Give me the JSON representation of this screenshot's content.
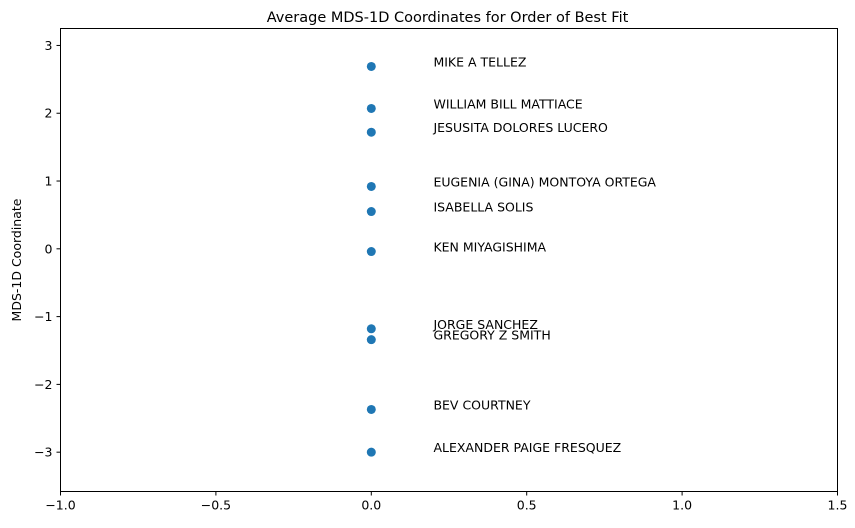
{
  "chart_data": {
    "type": "scatter",
    "title": "Average MDS-1D Coordinates for Order of Best Fit",
    "xlabel": "",
    "ylabel": "MDS-1D Coordinate",
    "xlim": [
      -1.0,
      1.5
    ],
    "ylim": [
      -3.58,
      3.25
    ],
    "xticks": [
      {
        "value": -1.0,
        "label": "−1.0"
      },
      {
        "value": -0.5,
        "label": "−0.5"
      },
      {
        "value": 0.0,
        "label": "0.0"
      },
      {
        "value": 0.5,
        "label": "0.5"
      },
      {
        "value": 1.0,
        "label": "1.0"
      },
      {
        "value": 1.5,
        "label": "1.5"
      }
    ],
    "yticks": [
      {
        "value": 3,
        "label": "3"
      },
      {
        "value": 2,
        "label": "2"
      },
      {
        "value": 1,
        "label": "1"
      },
      {
        "value": 0,
        "label": "0"
      },
      {
        "value": -1,
        "label": "−1"
      },
      {
        "value": -2,
        "label": "−2"
      },
      {
        "value": -3,
        "label": "−3"
      }
    ],
    "grid": false,
    "point_color": "#1f77b4",
    "label_x": 0.2,
    "points": [
      {
        "x": 0,
        "y": 2.69,
        "label": "MIKE A TELLEZ"
      },
      {
        "x": 0,
        "y": 2.07,
        "label": "WILLIAM BILL MATTIACE"
      },
      {
        "x": 0,
        "y": 1.72,
        "label": "JESUSITA DOLORES LUCERO"
      },
      {
        "x": 0,
        "y": 0.92,
        "label": "EUGENIA (GINA) MONTOYA ORTEGA"
      },
      {
        "x": 0,
        "y": 0.55,
        "label": "ISABELLA SOLIS"
      },
      {
        "x": 0,
        "y": -0.04,
        "label": "KEN MIYAGISHIMA"
      },
      {
        "x": 0,
        "y": -1.18,
        "label": "JORGE SANCHEZ"
      },
      {
        "x": 0,
        "y": -1.34,
        "label": "GREGORY Z SMITH"
      },
      {
        "x": 0,
        "y": -2.37,
        "label": "BEV COURTNEY"
      },
      {
        "x": 0,
        "y": -3.0,
        "label": "ALEXANDER PAIGE FRESQUEZ"
      }
    ]
  }
}
